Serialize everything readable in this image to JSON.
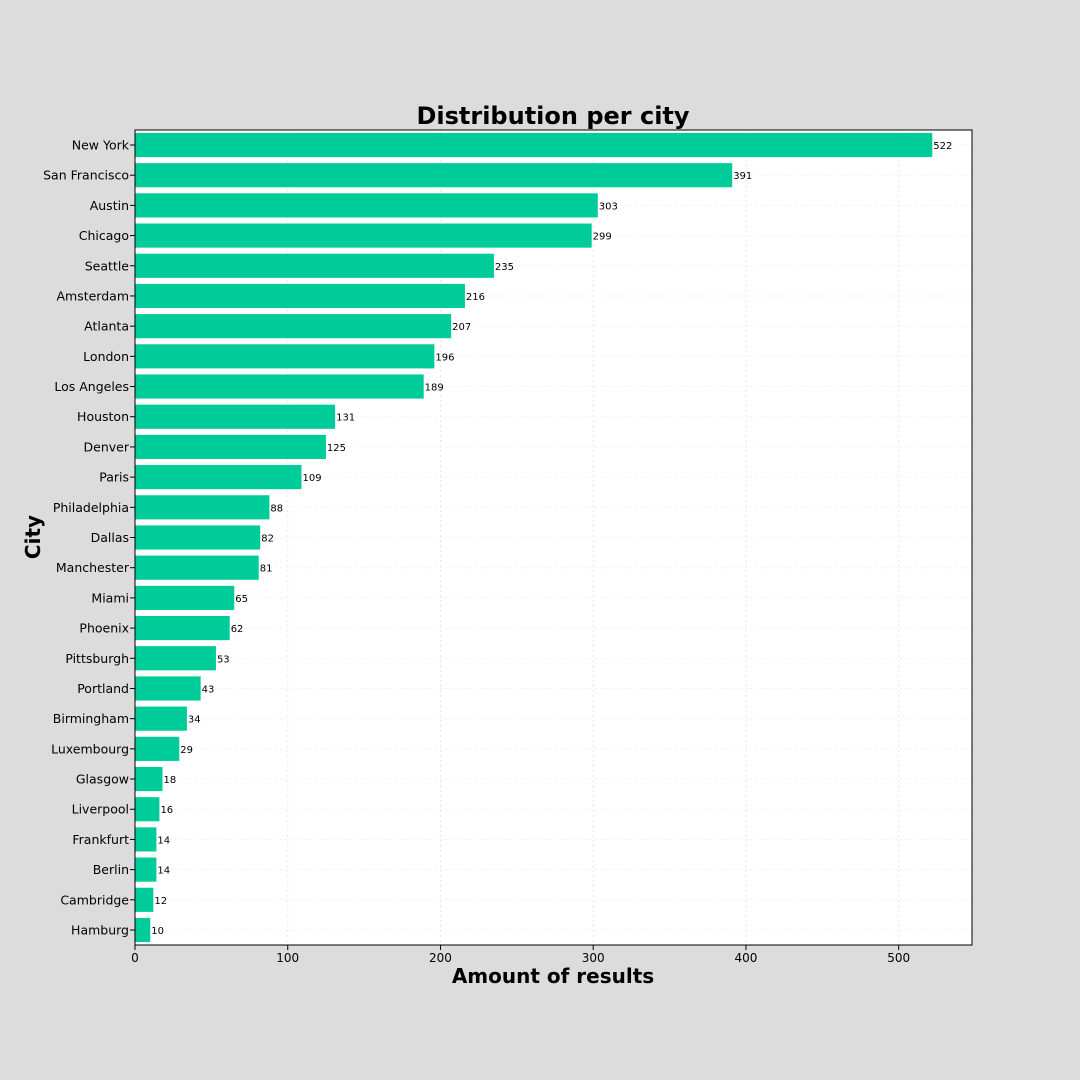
{
  "chart_data": {
    "type": "bar",
    "orientation": "horizontal",
    "title": "Distribution per city",
    "xlabel": "Amount of results",
    "ylabel": "City",
    "xlim": [
      0,
      548
    ],
    "xticks": [
      0,
      100,
      200,
      300,
      400,
      500
    ],
    "grid": true,
    "bar_color": "#00cc99",
    "background": "#dcdcdc",
    "plot_background": "#ffffff",
    "categories": [
      "New York",
      "San Francisco",
      "Austin",
      "Chicago",
      "Seattle",
      "Amsterdam",
      "Atlanta",
      "London",
      "Los Angeles",
      "Houston",
      "Denver",
      "Paris",
      "Philadelphia",
      "Dallas",
      "Manchester",
      "Miami",
      "Phoenix",
      "Pittsburgh",
      "Portland",
      "Birmingham",
      "Luxembourg",
      "Glasgow",
      "Liverpool",
      "Frankfurt",
      "Berlin",
      "Cambridge",
      "Hamburg"
    ],
    "values": [
      522,
      391,
      303,
      299,
      235,
      216,
      207,
      196,
      189,
      131,
      125,
      109,
      88,
      82,
      81,
      65,
      62,
      53,
      43,
      34,
      29,
      18,
      16,
      14,
      14,
      12,
      10
    ],
    "data_labels": [
      "522",
      "391",
      "303",
      "299",
      "235",
      "216",
      "207",
      "196",
      "189",
      "131",
      "125",
      "109",
      "88",
      "82",
      "81",
      "65",
      "62",
      "53",
      "43",
      "34",
      "29",
      "18",
      "16",
      "14",
      "14",
      "12",
      "10"
    ]
  }
}
